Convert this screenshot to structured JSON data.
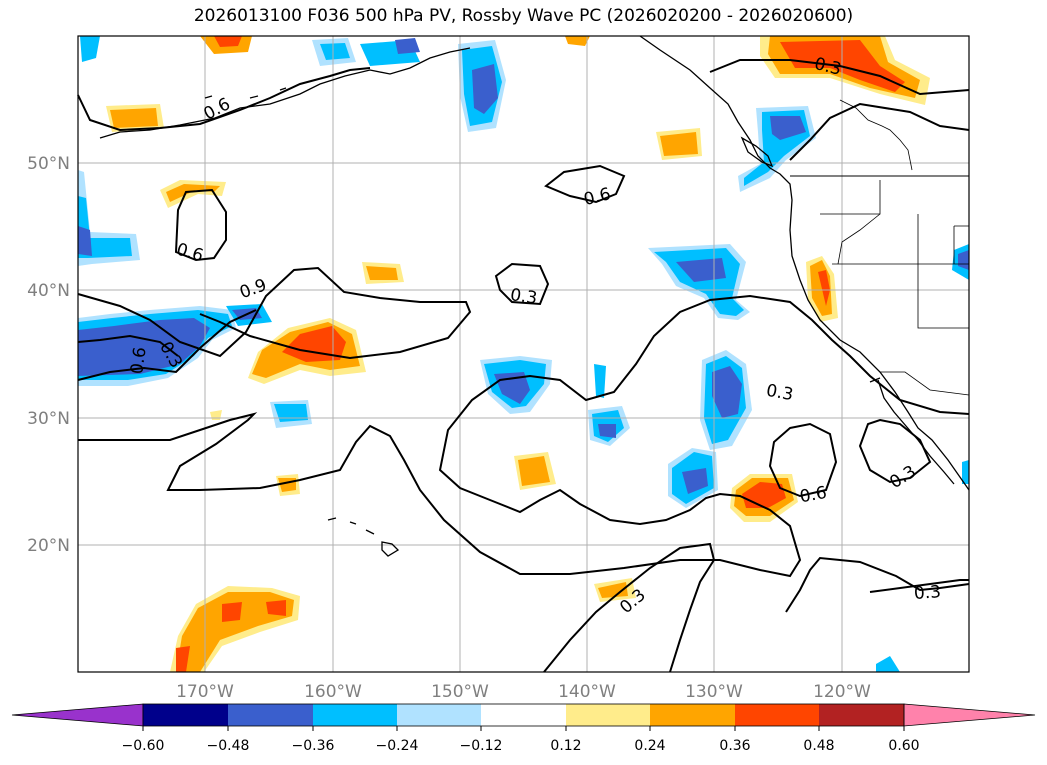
{
  "title": "2026013100 F036 500 hPa PV, Rossby Wave PC (2026020200 - 2026020600)",
  "map": {
    "lat_labels": [
      {
        "lat": 50,
        "label": "50°N"
      },
      {
        "lat": 40,
        "label": "40°N"
      },
      {
        "lat": 30,
        "label": "30°N"
      },
      {
        "lat": 20,
        "label": "20°N"
      }
    ],
    "lon_labels": [
      {
        "lon": -170,
        "label": "170°W"
      },
      {
        "lon": -160,
        "label": "160°W"
      },
      {
        "lon": -150,
        "label": "150°W"
      },
      {
        "lon": -140,
        "label": "140°W"
      },
      {
        "lon": -130,
        "label": "130°W"
      },
      {
        "lon": -120,
        "label": "120°W"
      }
    ],
    "contour_labels": [
      "0.6",
      "0.3",
      "0.6",
      "0.6",
      "0.3",
      "0.9",
      "0.6",
      "0.3",
      "0.3",
      "0.6",
      "0.3",
      "0.3",
      "0.3"
    ]
  },
  "colorbar": {
    "ticks": [
      "−0.60",
      "−0.48",
      "−0.36",
      "−0.24",
      "−0.12",
      "0.12",
      "0.24",
      "0.36",
      "0.48",
      "0.60"
    ],
    "colors": [
      "#9932cc",
      "#00008b",
      "#3a5fcd",
      "#00bfff",
      "#b0e2ff",
      "#ffffff",
      "#ffec8b",
      "#ffa500",
      "#ff4500",
      "#b22222",
      "#ff82ab"
    ]
  },
  "colors": {
    "grid": "#b0b0b0",
    "axis_labels": "#7f7f7f",
    "contour": "#000000"
  }
}
